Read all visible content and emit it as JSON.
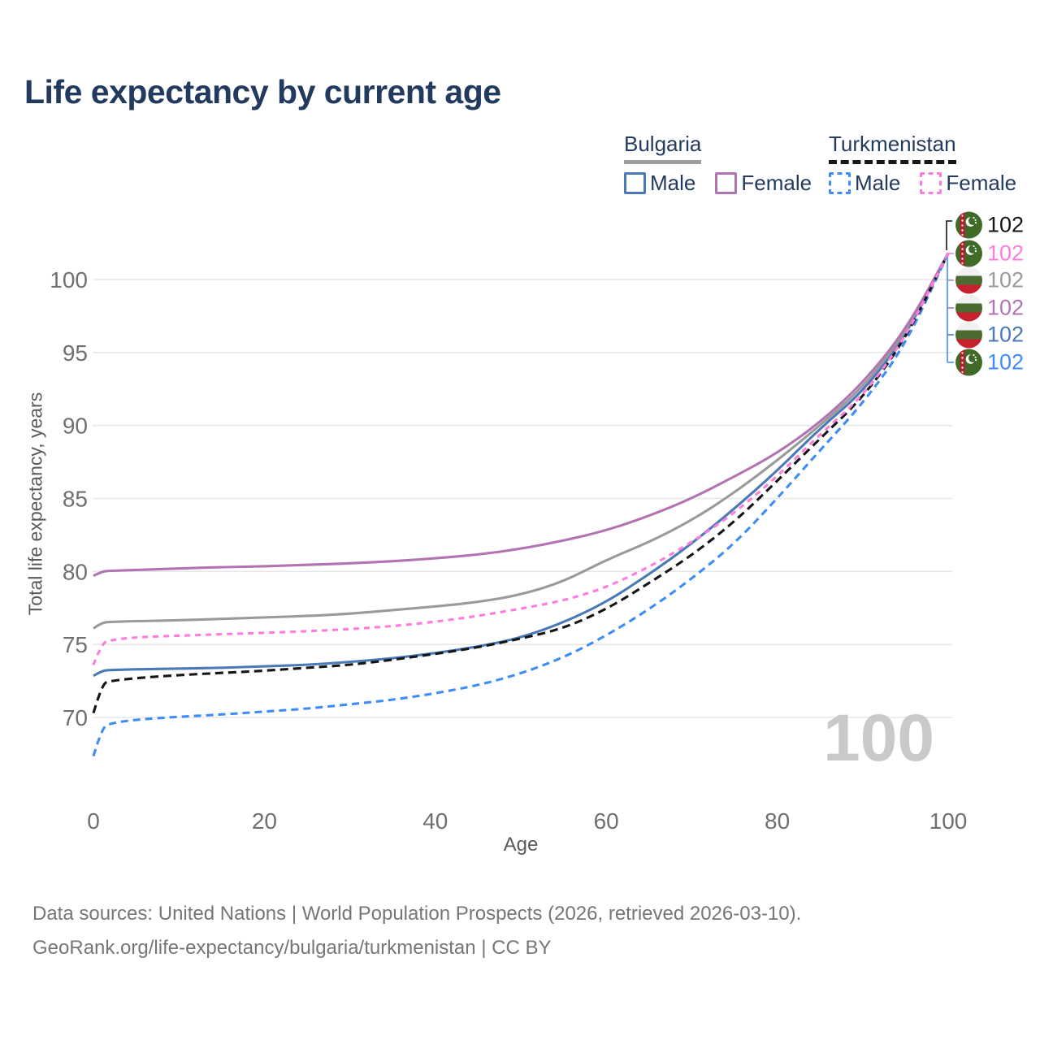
{
  "title": "Life expectancy by current age",
  "legend": {
    "groups": [
      {
        "label": "Bulgaria",
        "line_style": "solid",
        "underline_color": "#9e9e9e",
        "items": [
          {
            "label": "Male",
            "color": "#4a79b8",
            "dashed": false
          },
          {
            "label": "Female",
            "color": "#b273b2",
            "dashed": false
          }
        ]
      },
      {
        "label": "Turkmenistan",
        "line_style": "dashed",
        "underline_color": "#171717",
        "items": [
          {
            "label": "Male",
            "color": "#3e8df6",
            "dashed": true
          },
          {
            "label": "Female",
            "color": "#ff7cdf",
            "dashed": true
          }
        ]
      }
    ]
  },
  "chart_data": {
    "type": "line",
    "title": "Life expectancy by current age",
    "xlabel": "Age",
    "ylabel": "Total life expectancy, years",
    "xticks": [
      0,
      20,
      40,
      60,
      80,
      100
    ],
    "yticks": [
      70,
      75,
      80,
      85,
      90,
      95,
      100
    ],
    "xlim": [
      0,
      100
    ],
    "ylim": [
      66,
      102
    ],
    "grid": true,
    "legend_position": "top-right",
    "x": [
      0,
      1,
      2,
      5,
      10,
      15,
      20,
      25,
      30,
      35,
      40,
      45,
      50,
      55,
      60,
      65,
      70,
      75,
      80,
      85,
      90,
      95,
      100
    ],
    "series": [
      {
        "name": "Bulgaria Male",
        "country": "Bulgaria",
        "sex": "Male",
        "color": "#4a79b8",
        "dash": "solid",
        "values": [
          72.85,
          73.2,
          73.25,
          73.3,
          73.35,
          73.4,
          73.5,
          73.6,
          73.8,
          74.05,
          74.4,
          74.85,
          75.45,
          76.5,
          77.9,
          79.8,
          81.9,
          84.3,
          86.9,
          89.8,
          92.3,
          96.1,
          101.8
        ]
      },
      {
        "name": "Bulgaria",
        "country": "Bulgaria",
        "sex": "Both",
        "color": "#9a9a9a",
        "dash": "solid",
        "values": [
          76.1,
          76.5,
          76.55,
          76.6,
          76.65,
          76.75,
          76.85,
          76.95,
          77.1,
          77.35,
          77.6,
          77.9,
          78.4,
          79.3,
          80.8,
          82.0,
          83.5,
          85.4,
          87.6,
          90.0,
          92.6,
          96.3,
          101.8
        ]
      },
      {
        "name": "Bulgaria Female",
        "country": "Bulgaria",
        "sex": "Female",
        "color": "#b273b2",
        "dash": "solid",
        "values": [
          79.7,
          80.0,
          80.05,
          80.1,
          80.2,
          80.3,
          80.35,
          80.45,
          80.55,
          80.7,
          80.9,
          81.15,
          81.55,
          82.1,
          82.8,
          83.8,
          85.0,
          86.5,
          88.1,
          90.2,
          92.9,
          96.5,
          101.8
        ]
      },
      {
        "name": "Turkmenistan Male",
        "country": "Turkmenistan",
        "sex": "Male",
        "color": "#3e8df6",
        "dash": "dashed",
        "values": [
          67.35,
          69.3,
          69.6,
          69.85,
          70.05,
          70.2,
          70.4,
          70.6,
          70.9,
          71.2,
          71.65,
          72.2,
          73.0,
          74.1,
          75.6,
          77.4,
          79.5,
          81.9,
          85.0,
          88.3,
          91.5,
          95.5,
          101.8
        ]
      },
      {
        "name": "Turkmenistan",
        "country": "Turkmenistan",
        "sex": "Both",
        "color": "#151515",
        "dash": "dashed",
        "values": [
          70.3,
          72.3,
          72.5,
          72.7,
          72.9,
          73.05,
          73.2,
          73.4,
          73.6,
          73.95,
          74.35,
          74.8,
          75.4,
          76.1,
          77.4,
          79.2,
          81.1,
          83.4,
          86.2,
          89.1,
          91.9,
          95.9,
          101.8
        ]
      },
      {
        "name": "Turkmenistan Female",
        "country": "Turkmenistan",
        "sex": "Female",
        "color": "#ff7cdf",
        "dash": "dashed",
        "values": [
          73.6,
          75.1,
          75.3,
          75.5,
          75.6,
          75.7,
          75.8,
          75.9,
          76.05,
          76.25,
          76.55,
          76.95,
          77.45,
          78.0,
          78.9,
          80.3,
          82.0,
          84.0,
          86.5,
          89.4,
          92.0,
          96.0,
          101.8
        ]
      }
    ],
    "end_labels": [
      {
        "value": "102",
        "series": "Turkmenistan",
        "flag": "turkmenistan",
        "color": "#151515"
      },
      {
        "value": "102",
        "series": "Turkmenistan Female",
        "flag": "turkmenistan",
        "color": "#ff7cdf"
      },
      {
        "value": "102",
        "series": "Bulgaria",
        "flag": "bulgaria",
        "color": "#9a9a9a"
      },
      {
        "value": "102",
        "series": "Bulgaria Female",
        "flag": "bulgaria",
        "color": "#b273b2"
      },
      {
        "value": "102",
        "series": "Bulgaria Male",
        "flag": "bulgaria",
        "color": "#4a79b8"
      },
      {
        "value": "102",
        "series": "Turkmenistan Male",
        "flag": "turkmenistan",
        "color": "#3e8df6"
      }
    ],
    "watermark": "100"
  },
  "footer": {
    "line1": "Data sources: United Nations | World Population Prospects (2026, retrieved 2026-03-10).",
    "line2": "GeoRank.org/life-expectancy/bulgaria/turkmenistan | CC BY"
  }
}
